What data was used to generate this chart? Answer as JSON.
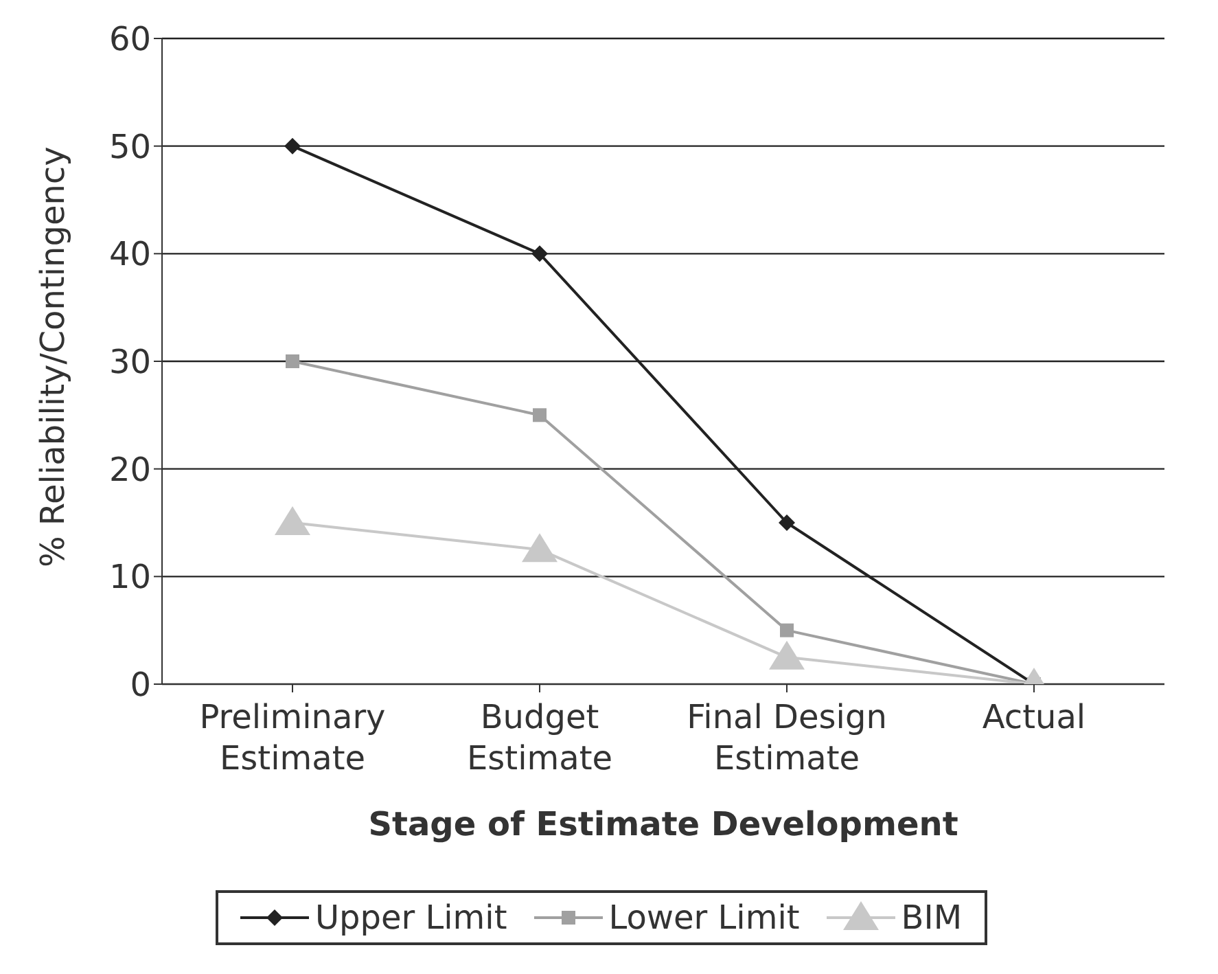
{
  "chart_data": {
    "type": "line",
    "xlabel": "Stage of Estimate Development",
    "ylabel": "% Reliability/Contingency",
    "categories": [
      "Preliminary Estimate",
      "Budget Estimate",
      "Final Design Estimate",
      "Actual"
    ],
    "series": [
      {
        "name": "Upper Limit",
        "color": "#222222",
        "marker": "diamond",
        "values": [
          50,
          40,
          15,
          0
        ]
      },
      {
        "name": "Lower Limit",
        "color": "#a0a0a0",
        "marker": "square",
        "values": [
          30,
          25,
          5,
          0
        ]
      },
      {
        "name": "BIM",
        "color": "#c8c8c8",
        "marker": "triangle",
        "values": [
          15,
          12.5,
          2.5,
          0
        ]
      }
    ],
    "ylim": [
      0,
      60
    ],
    "yticks": [
      0,
      10,
      20,
      30,
      40,
      50,
      60
    ],
    "grid": "y",
    "legend": "bottom"
  }
}
